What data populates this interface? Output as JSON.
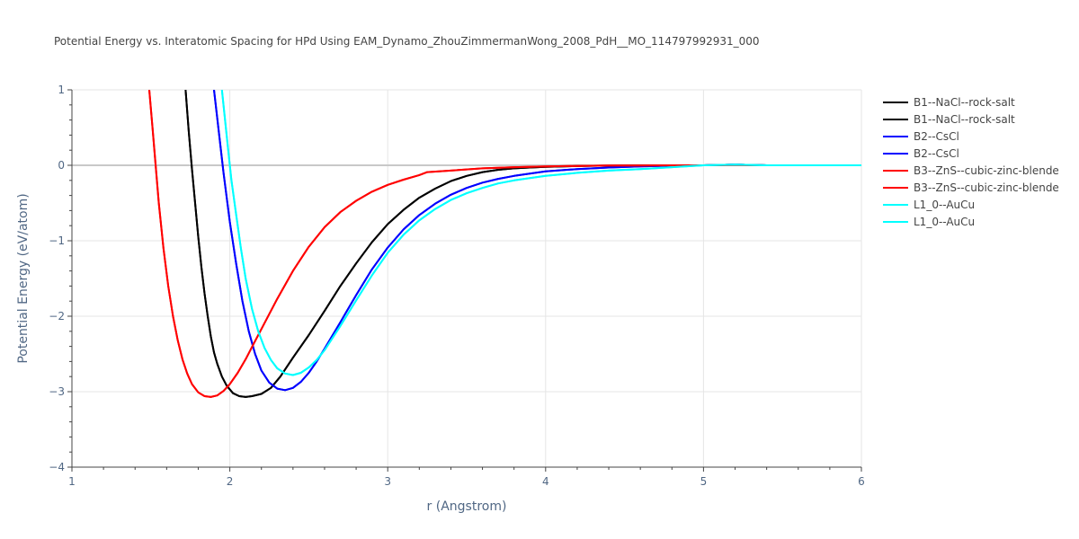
{
  "chart_data": {
    "type": "line",
    "title": "Potential Energy vs. Interatomic Spacing for HPd Using EAM_Dynamo_ZhouZimmermanWong_2008_PdH__MO_114797992931_000",
    "xlabel": "r (Angstrom)",
    "ylabel": "Potential Energy (eV/atom)",
    "xlim": [
      1,
      6
    ],
    "ylim": [
      -4,
      1
    ],
    "xticks": [
      1,
      2,
      3,
      4,
      5,
      6
    ],
    "xtick_labels": [
      "1",
      "2",
      "3",
      "4",
      "5",
      "6"
    ],
    "yticks": [
      -4,
      -3,
      -2,
      -1,
      0,
      1
    ],
    "ytick_labels": [
      "−4",
      "−3",
      "−2",
      "−1",
      "0",
      "1"
    ],
    "grid": true,
    "legend_position": "top-right outside",
    "series": [
      {
        "name": "B1--NaCl--rock-salt",
        "color": "#000000",
        "x": [
          1.72,
          1.74,
          1.76,
          1.78,
          1.8,
          1.82,
          1.84,
          1.86,
          1.88,
          1.9,
          1.92,
          1.95,
          1.98,
          2.02,
          2.06,
          2.1,
          2.14,
          2.2,
          2.26,
          2.32,
          2.4,
          2.5,
          2.6,
          2.7,
          2.8,
          2.9,
          3.0,
          3.1,
          3.2,
          3.3,
          3.4,
          3.5,
          3.6,
          3.7,
          3.8,
          3.9,
          4.0,
          4.2,
          4.4,
          4.6,
          4.8,
          5.0,
          5.2,
          5.4,
          5.6,
          5.8,
          6.0
        ],
        "y": [
          1.0,
          0.45,
          -0.05,
          -0.5,
          -0.95,
          -1.35,
          -1.7,
          -2.0,
          -2.27,
          -2.48,
          -2.63,
          -2.8,
          -2.92,
          -3.02,
          -3.06,
          -3.07,
          -3.06,
          -3.03,
          -2.95,
          -2.8,
          -2.55,
          -2.25,
          -1.93,
          -1.6,
          -1.3,
          -1.02,
          -0.78,
          -0.59,
          -0.43,
          -0.31,
          -0.21,
          -0.14,
          -0.09,
          -0.06,
          -0.04,
          -0.03,
          -0.02,
          -0.01,
          -0.005,
          0.0,
          0.0,
          0.0,
          0.01,
          0.0,
          0.0,
          0.0,
          0.0
        ]
      },
      {
        "name": "B1--NaCl--rock-salt",
        "color": "#000000",
        "x": [
          1.72,
          1.74,
          1.76,
          1.78,
          1.8,
          1.82,
          1.84,
          1.86,
          1.88,
          1.9,
          1.92,
          1.95,
          1.98,
          2.02,
          2.06,
          2.1,
          2.14,
          2.2,
          2.26,
          2.32,
          2.4,
          2.5,
          2.6,
          2.7,
          2.8,
          2.9,
          3.0,
          3.1,
          3.2,
          3.3,
          3.4,
          3.5,
          3.6,
          3.7,
          3.8,
          3.9,
          4.0,
          4.2,
          4.4,
          4.6,
          4.8,
          5.0,
          5.2,
          5.4,
          5.6,
          5.8,
          6.0
        ],
        "y": [
          1.0,
          0.45,
          -0.05,
          -0.5,
          -0.95,
          -1.35,
          -1.7,
          -2.0,
          -2.27,
          -2.48,
          -2.63,
          -2.8,
          -2.92,
          -3.02,
          -3.06,
          -3.07,
          -3.06,
          -3.03,
          -2.95,
          -2.8,
          -2.55,
          -2.25,
          -1.93,
          -1.6,
          -1.3,
          -1.02,
          -0.78,
          -0.59,
          -0.43,
          -0.31,
          -0.21,
          -0.14,
          -0.09,
          -0.06,
          -0.04,
          -0.03,
          -0.02,
          -0.01,
          -0.005,
          0.0,
          0.0,
          0.0,
          0.01,
          0.0,
          0.0,
          0.0,
          0.0
        ]
      },
      {
        "name": "B2--CsCl",
        "color": "#0000ff",
        "x": [
          1.9,
          1.93,
          1.96,
          2.0,
          2.04,
          2.08,
          2.12,
          2.16,
          2.2,
          2.25,
          2.3,
          2.35,
          2.4,
          2.45,
          2.5,
          2.55,
          2.6,
          2.7,
          2.8,
          2.9,
          3.0,
          3.1,
          3.2,
          3.3,
          3.4,
          3.5,
          3.6,
          3.7,
          3.8,
          3.9,
          4.0,
          4.2,
          4.4,
          4.6,
          4.8,
          5.0,
          5.2,
          5.4,
          5.6,
          5.8,
          6.0
        ],
        "y": [
          1.0,
          0.45,
          -0.1,
          -0.75,
          -1.3,
          -1.8,
          -2.2,
          -2.5,
          -2.72,
          -2.88,
          -2.96,
          -2.98,
          -2.95,
          -2.87,
          -2.75,
          -2.6,
          -2.43,
          -2.08,
          -1.72,
          -1.38,
          -1.09,
          -0.85,
          -0.66,
          -0.51,
          -0.39,
          -0.3,
          -0.23,
          -0.18,
          -0.14,
          -0.11,
          -0.08,
          -0.05,
          -0.03,
          -0.015,
          -0.005,
          0.0,
          0.01,
          0.0,
          0.0,
          0.0,
          0.0
        ]
      },
      {
        "name": "B2--CsCl",
        "color": "#0000ff",
        "x": [
          1.9,
          1.93,
          1.96,
          2.0,
          2.04,
          2.08,
          2.12,
          2.16,
          2.2,
          2.25,
          2.3,
          2.35,
          2.4,
          2.45,
          2.5,
          2.55,
          2.6,
          2.7,
          2.8,
          2.9,
          3.0,
          3.1,
          3.2,
          3.3,
          3.4,
          3.5,
          3.6,
          3.7,
          3.8,
          3.9,
          4.0,
          4.2,
          4.4,
          4.6,
          4.8,
          5.0,
          5.2,
          5.4,
          5.6,
          5.8,
          6.0
        ],
        "y": [
          1.0,
          0.45,
          -0.1,
          -0.75,
          -1.3,
          -1.8,
          -2.2,
          -2.5,
          -2.72,
          -2.88,
          -2.96,
          -2.98,
          -2.95,
          -2.87,
          -2.75,
          -2.6,
          -2.43,
          -2.08,
          -1.72,
          -1.38,
          -1.09,
          -0.85,
          -0.66,
          -0.51,
          -0.39,
          -0.3,
          -0.23,
          -0.18,
          -0.14,
          -0.11,
          -0.08,
          -0.05,
          -0.03,
          -0.015,
          -0.005,
          0.0,
          0.01,
          0.0,
          0.0,
          0.0,
          0.0
        ]
      },
      {
        "name": "B3--ZnS--cubic-zinc-blende",
        "color": "#ff0000",
        "x": [
          1.49,
          1.51,
          1.53,
          1.55,
          1.58,
          1.61,
          1.64,
          1.67,
          1.7,
          1.73,
          1.76,
          1.8,
          1.84,
          1.88,
          1.92,
          1.96,
          2.0,
          2.05,
          2.1,
          2.15,
          2.2,
          2.3,
          2.4,
          2.5,
          2.6,
          2.7,
          2.8,
          2.9,
          3.0,
          3.1,
          3.2,
          3.25,
          3.4,
          3.6,
          3.8,
          4.0,
          4.2,
          4.4,
          4.6,
          4.8,
          5.0,
          5.2,
          5.4,
          5.6,
          5.8,
          6.0
        ],
        "y": [
          1.0,
          0.5,
          0.0,
          -0.5,
          -1.1,
          -1.6,
          -2.0,
          -2.32,
          -2.57,
          -2.76,
          -2.9,
          -3.01,
          -3.06,
          -3.07,
          -3.05,
          -2.99,
          -2.9,
          -2.75,
          -2.57,
          -2.37,
          -2.17,
          -1.77,
          -1.4,
          -1.08,
          -0.82,
          -0.62,
          -0.47,
          -0.35,
          -0.26,
          -0.19,
          -0.13,
          -0.09,
          -0.07,
          -0.04,
          -0.025,
          -0.015,
          -0.008,
          -0.004,
          -0.002,
          0.0,
          0.0,
          0.005,
          0.0,
          0.0,
          0.0,
          0.0
        ]
      },
      {
        "name": "B3--ZnS--cubic-zinc-blende",
        "color": "#ff0000",
        "x": [
          1.49,
          1.51,
          1.53,
          1.55,
          1.58,
          1.61,
          1.64,
          1.67,
          1.7,
          1.73,
          1.76,
          1.8,
          1.84,
          1.88,
          1.92,
          1.96,
          2.0,
          2.05,
          2.1,
          2.15,
          2.2,
          2.3,
          2.4,
          2.5,
          2.6,
          2.7,
          2.8,
          2.9,
          3.0,
          3.1,
          3.2,
          3.25,
          3.4,
          3.6,
          3.8,
          4.0,
          4.2,
          4.4,
          4.6,
          4.8,
          5.0,
          5.2,
          5.4,
          5.6,
          5.8,
          6.0
        ],
        "y": [
          1.0,
          0.5,
          0.0,
          -0.5,
          -1.1,
          -1.6,
          -2.0,
          -2.32,
          -2.57,
          -2.76,
          -2.9,
          -3.01,
          -3.06,
          -3.07,
          -3.05,
          -2.99,
          -2.9,
          -2.75,
          -2.57,
          -2.37,
          -2.17,
          -1.77,
          -1.4,
          -1.08,
          -0.82,
          -0.62,
          -0.47,
          -0.35,
          -0.26,
          -0.19,
          -0.13,
          -0.09,
          -0.07,
          -0.04,
          -0.025,
          -0.015,
          -0.008,
          -0.004,
          -0.002,
          0.0,
          0.0,
          0.005,
          0.0,
          0.0,
          0.0,
          0.0
        ]
      },
      {
        "name": "L1_0--AuCu",
        "color": "#00ffff",
        "x": [
          1.95,
          1.97,
          1.99,
          2.01,
          2.04,
          2.07,
          2.1,
          2.14,
          2.18,
          2.22,
          2.26,
          2.3,
          2.35,
          2.4,
          2.45,
          2.5,
          2.55,
          2.6,
          2.7,
          2.8,
          2.9,
          3.0,
          3.1,
          3.2,
          3.3,
          3.4,
          3.5,
          3.6,
          3.7,
          3.8,
          3.9,
          4.0,
          4.2,
          4.4,
          4.6,
          4.8,
          5.0,
          5.2,
          5.4,
          5.6,
          5.8,
          6.0
        ],
        "y": [
          1.0,
          0.6,
          0.2,
          -0.2,
          -0.65,
          -1.1,
          -1.5,
          -1.9,
          -2.2,
          -2.42,
          -2.58,
          -2.69,
          -2.76,
          -2.78,
          -2.75,
          -2.68,
          -2.58,
          -2.45,
          -2.13,
          -1.79,
          -1.46,
          -1.16,
          -0.92,
          -0.73,
          -0.58,
          -0.46,
          -0.37,
          -0.3,
          -0.24,
          -0.2,
          -0.17,
          -0.14,
          -0.1,
          -0.07,
          -0.05,
          -0.025,
          0.0,
          0.01,
          0.0,
          0.0,
          0.0,
          0.0
        ]
      },
      {
        "name": "L1_0--AuCu",
        "color": "#00ffff",
        "x": [
          1.95,
          1.97,
          1.99,
          2.01,
          2.04,
          2.07,
          2.1,
          2.14,
          2.18,
          2.22,
          2.26,
          2.3,
          2.35,
          2.4,
          2.45,
          2.5,
          2.55,
          2.6,
          2.7,
          2.8,
          2.9,
          3.0,
          3.1,
          3.2,
          3.3,
          3.4,
          3.5,
          3.6,
          3.7,
          3.8,
          3.9,
          4.0,
          4.2,
          4.4,
          4.6,
          4.8,
          5.0,
          5.2,
          5.4,
          5.6,
          5.8,
          6.0
        ],
        "y": [
          1.0,
          0.6,
          0.2,
          -0.2,
          -0.65,
          -1.1,
          -1.5,
          -1.9,
          -2.2,
          -2.42,
          -2.58,
          -2.69,
          -2.76,
          -2.78,
          -2.75,
          -2.68,
          -2.58,
          -2.45,
          -2.13,
          -1.79,
          -1.46,
          -1.16,
          -0.92,
          -0.73,
          -0.58,
          -0.46,
          -0.37,
          -0.3,
          -0.24,
          -0.2,
          -0.17,
          -0.14,
          -0.1,
          -0.07,
          -0.05,
          -0.025,
          0.0,
          0.01,
          0.0,
          0.0,
          0.0,
          0.0
        ]
      }
    ]
  }
}
